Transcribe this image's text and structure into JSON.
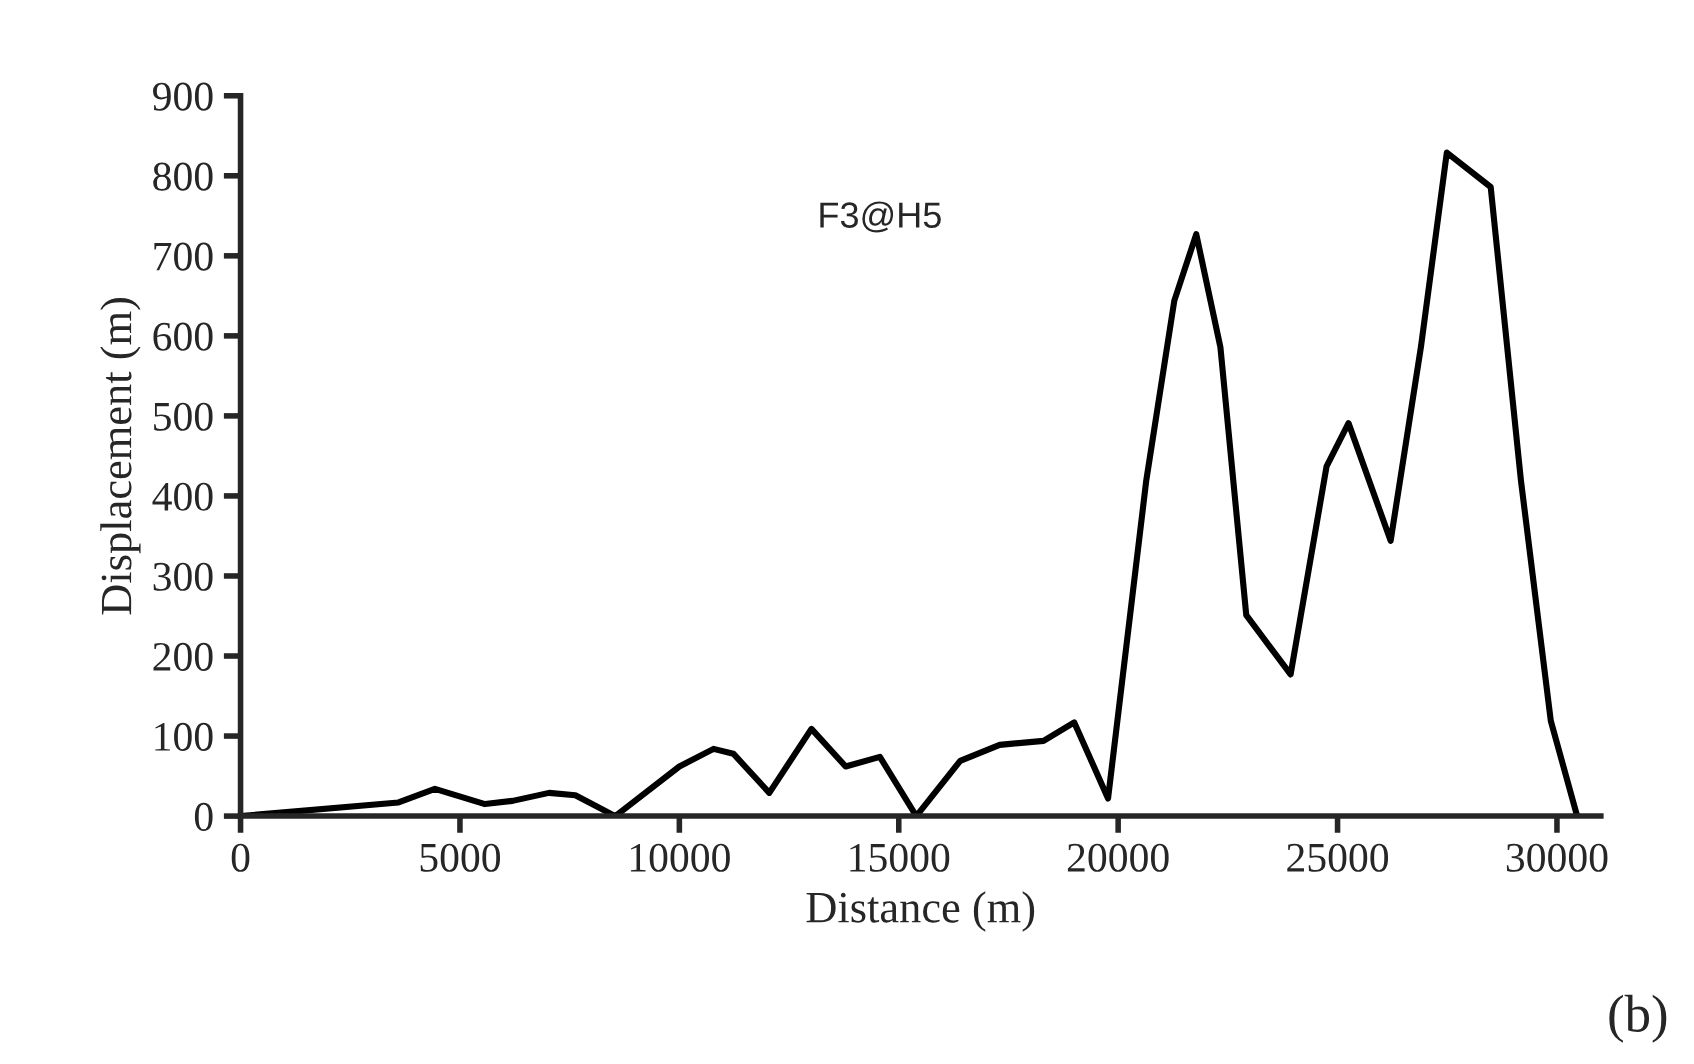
{
  "chart_data": {
    "type": "line",
    "xlabel": "Distance (m)",
    "ylabel": "Displacement (m)",
    "annotations": [
      "F3@H5",
      "(b)"
    ],
    "xlim": [
      0,
      31000
    ],
    "xticks": [
      0,
      5000,
      10000,
      15000,
      20000,
      25000,
      30000
    ],
    "ylim": [
      0,
      900
    ],
    "yticks": [
      0,
      100,
      200,
      300,
      400,
      500,
      600,
      700,
      800,
      900
    ],
    "grid": false,
    "legend": false,
    "marker": "none",
    "line_style": "solid",
    "series": [
      {
        "color": "#000000",
        "x": [
          0,
          3600,
          4430,
          5570,
          6200,
          7030,
          7630,
          8540,
          10000,
          10780,
          11230,
          12050,
          13010,
          13790,
          14570,
          15400,
          16400,
          17300,
          18300,
          19000,
          19770,
          20640,
          21280,
          21780,
          22330,
          22920,
          23930,
          24750,
          25250,
          26210,
          26900,
          27490,
          28490,
          29180,
          29860,
          30460
        ],
        "values": [
          0,
          17,
          34,
          15,
          19,
          29,
          26,
          0,
          62,
          84,
          78,
          29,
          109,
          62,
          74,
          0,
          69,
          89,
          94,
          117,
          22,
          419,
          644,
          727,
          586,
          251,
          177,
          437,
          491,
          344,
          586,
          829,
          786,
          419,
          119,
          0
        ]
      }
    ]
  }
}
